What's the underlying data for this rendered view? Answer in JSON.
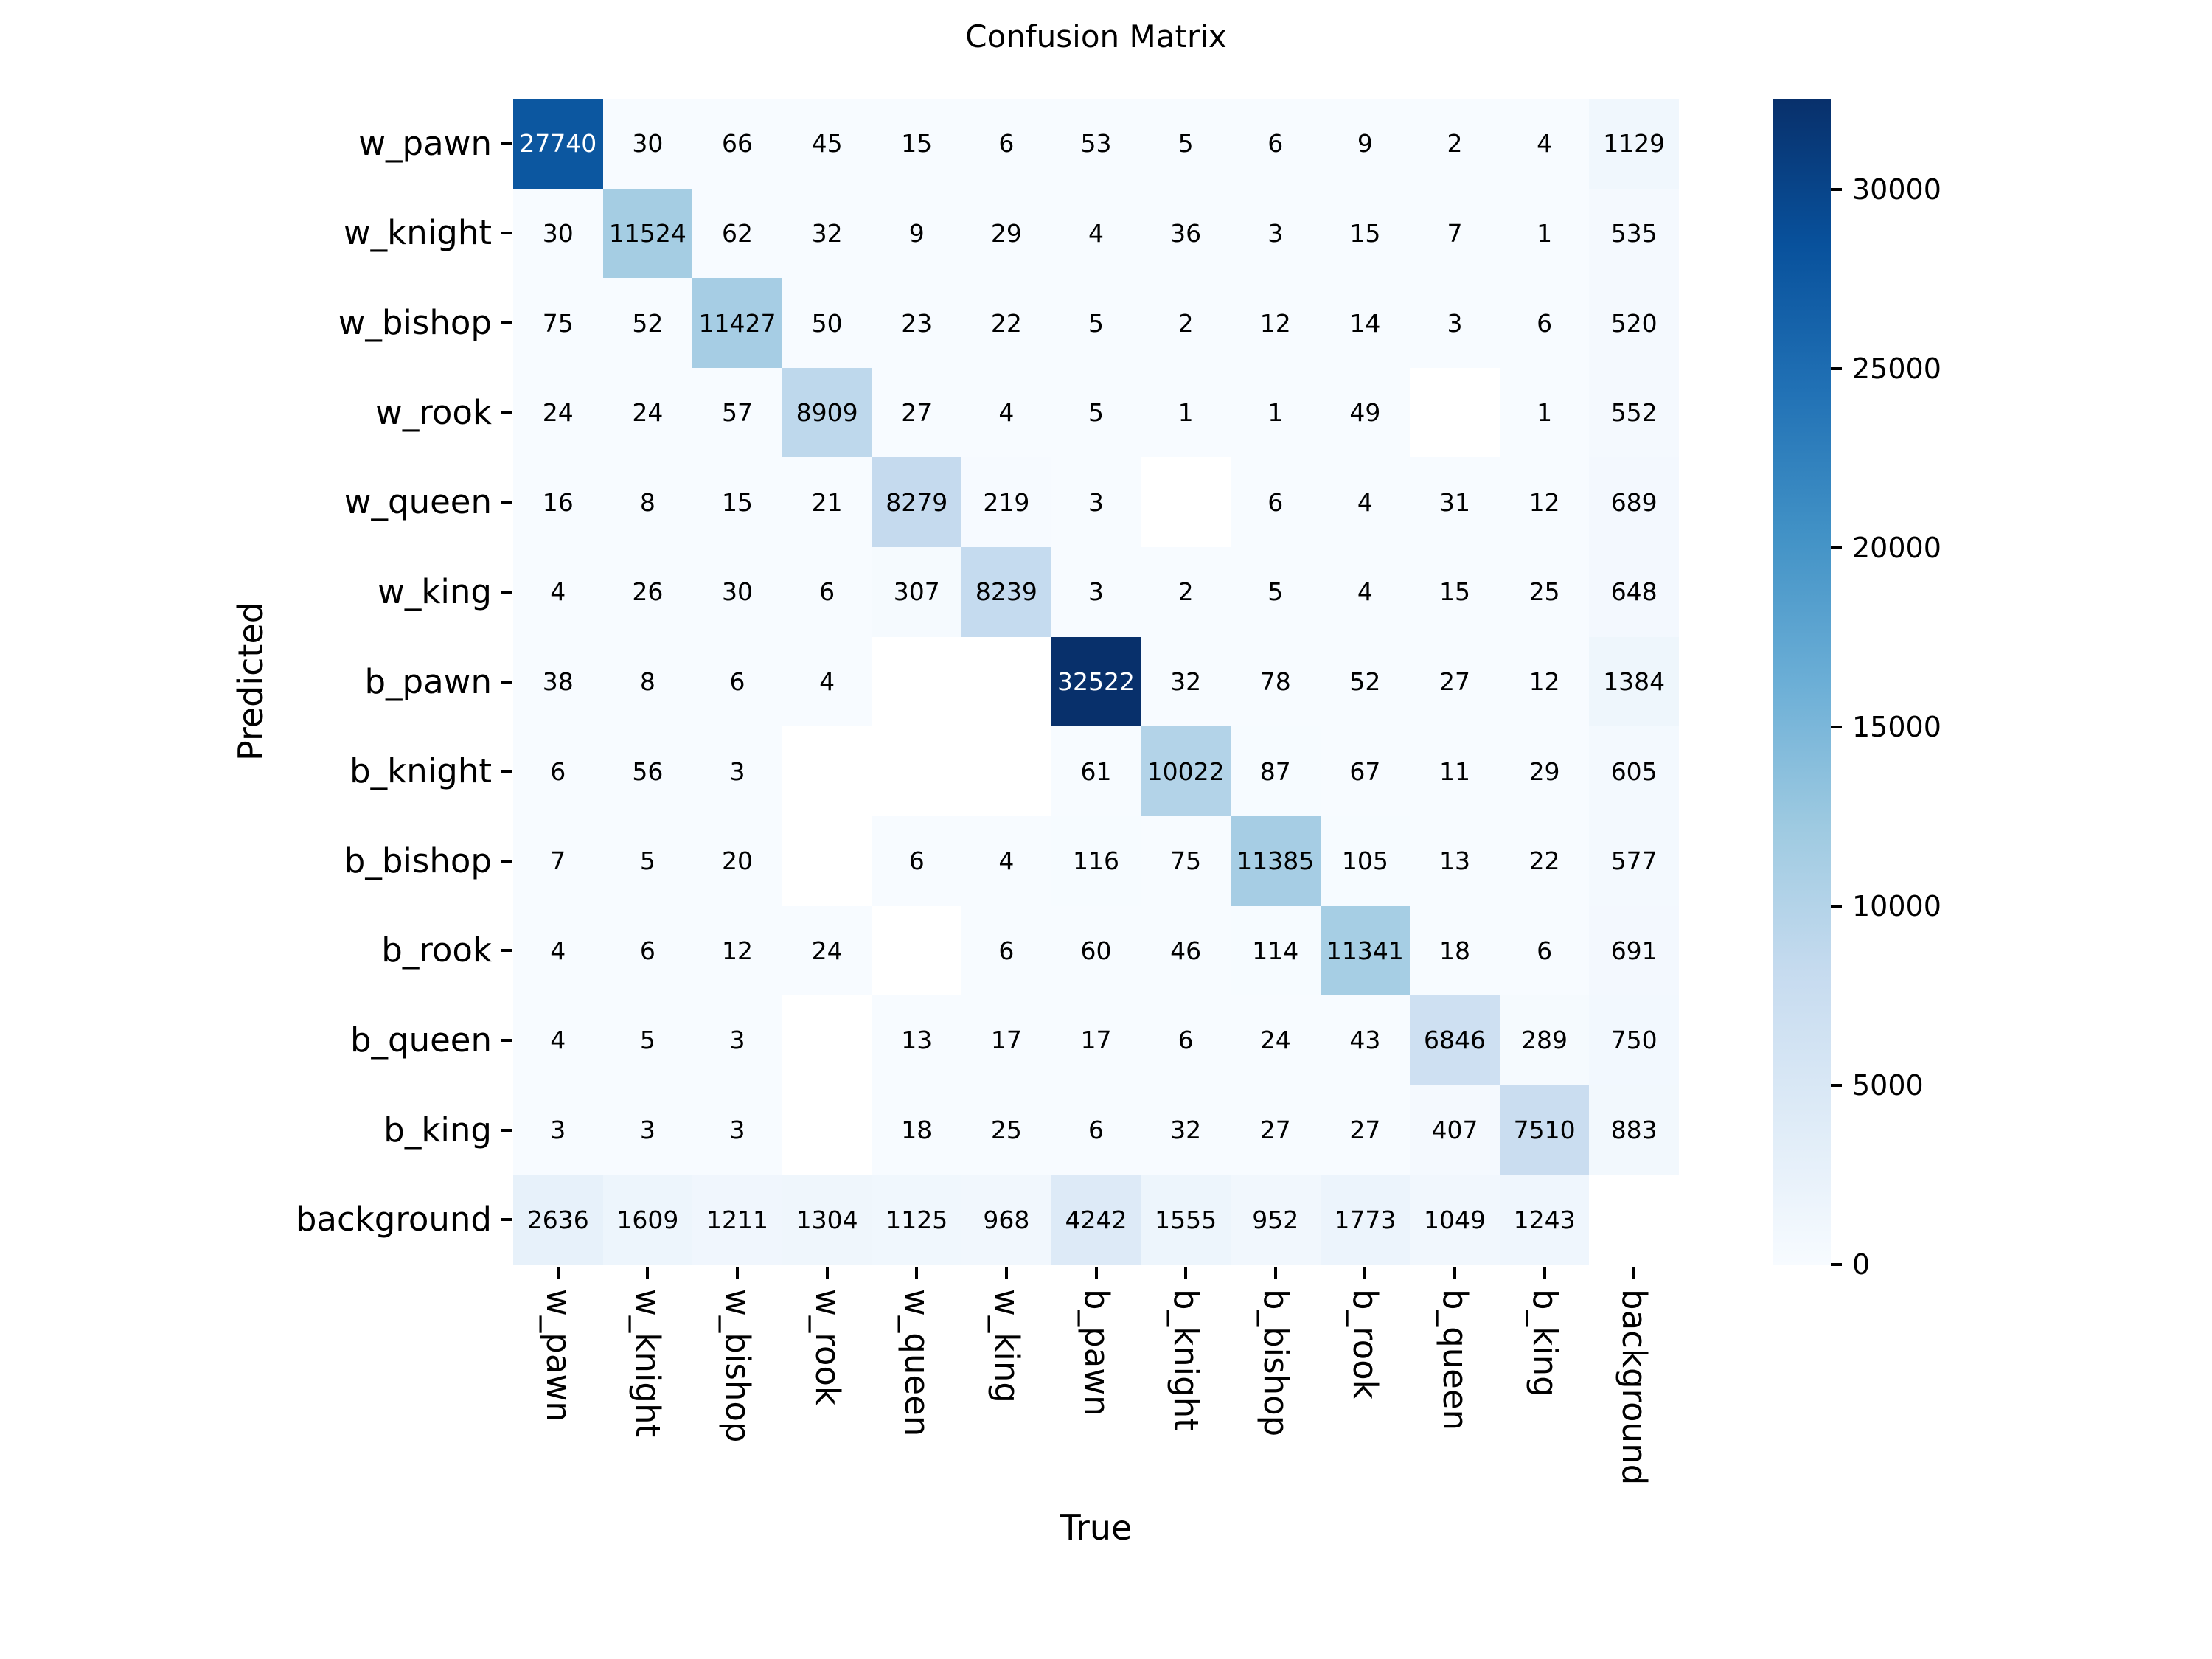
{
  "chart_data": {
    "type": "heatmap",
    "title": "Confusion Matrix",
    "xlabel": "True",
    "ylabel": "Predicted",
    "x_ticklabels": [
      "w_pawn",
      "w_knight",
      "w_bishop",
      "w_rook",
      "w_queen",
      "w_king",
      "b_pawn",
      "b_knight",
      "b_bishop",
      "b_rook",
      "b_queen",
      "b_king",
      "background"
    ],
    "y_ticklabels": [
      "w_pawn",
      "w_knight",
      "w_bishop",
      "w_rook",
      "w_queen",
      "w_king",
      "b_pawn",
      "b_knight",
      "b_bishop",
      "b_rook",
      "b_queen",
      "b_king",
      "background"
    ],
    "values": [
      [
        27740,
        30,
        66,
        45,
        15,
        6,
        53,
        5,
        6,
        9,
        2,
        4,
        1129
      ],
      [
        30,
        11524,
        62,
        32,
        9,
        29,
        4,
        36,
        3,
        15,
        7,
        1,
        535
      ],
      [
        75,
        52,
        11427,
        50,
        23,
        22,
        5,
        2,
        12,
        14,
        3,
        6,
        520
      ],
      [
        24,
        24,
        57,
        8909,
        27,
        4,
        5,
        1,
        1,
        49,
        null,
        1,
        552
      ],
      [
        16,
        8,
        15,
        21,
        8279,
        219,
        3,
        null,
        6,
        4,
        31,
        12,
        689
      ],
      [
        4,
        26,
        30,
        6,
        307,
        8239,
        3,
        2,
        5,
        4,
        15,
        25,
        648
      ],
      [
        38,
        8,
        6,
        4,
        null,
        null,
        32522,
        32,
        78,
        52,
        27,
        12,
        1384
      ],
      [
        6,
        56,
        3,
        null,
        null,
        null,
        61,
        10022,
        87,
        67,
        11,
        29,
        605
      ],
      [
        7,
        5,
        20,
        null,
        6,
        4,
        116,
        75,
        11385,
        105,
        13,
        22,
        577
      ],
      [
        4,
        6,
        12,
        24,
        null,
        6,
        60,
        46,
        114,
        11341,
        18,
        6,
        691
      ],
      [
        4,
        5,
        3,
        null,
        13,
        17,
        17,
        6,
        24,
        43,
        6846,
        289,
        750
      ],
      [
        3,
        3,
        3,
        null,
        18,
        25,
        6,
        32,
        27,
        27,
        407,
        7510,
        883
      ],
      [
        2636,
        1609,
        1211,
        1304,
        1125,
        968,
        4242,
        1555,
        952,
        1773,
        1049,
        1243,
        null
      ]
    ],
    "vmin": 0,
    "vmax": 32522,
    "colormap": "Blues",
    "colorbar_ticks": [
      0,
      5000,
      10000,
      15000,
      20000,
      25000,
      30000
    ],
    "colorbar_position": "right",
    "grid": false,
    "legend": "none"
  }
}
